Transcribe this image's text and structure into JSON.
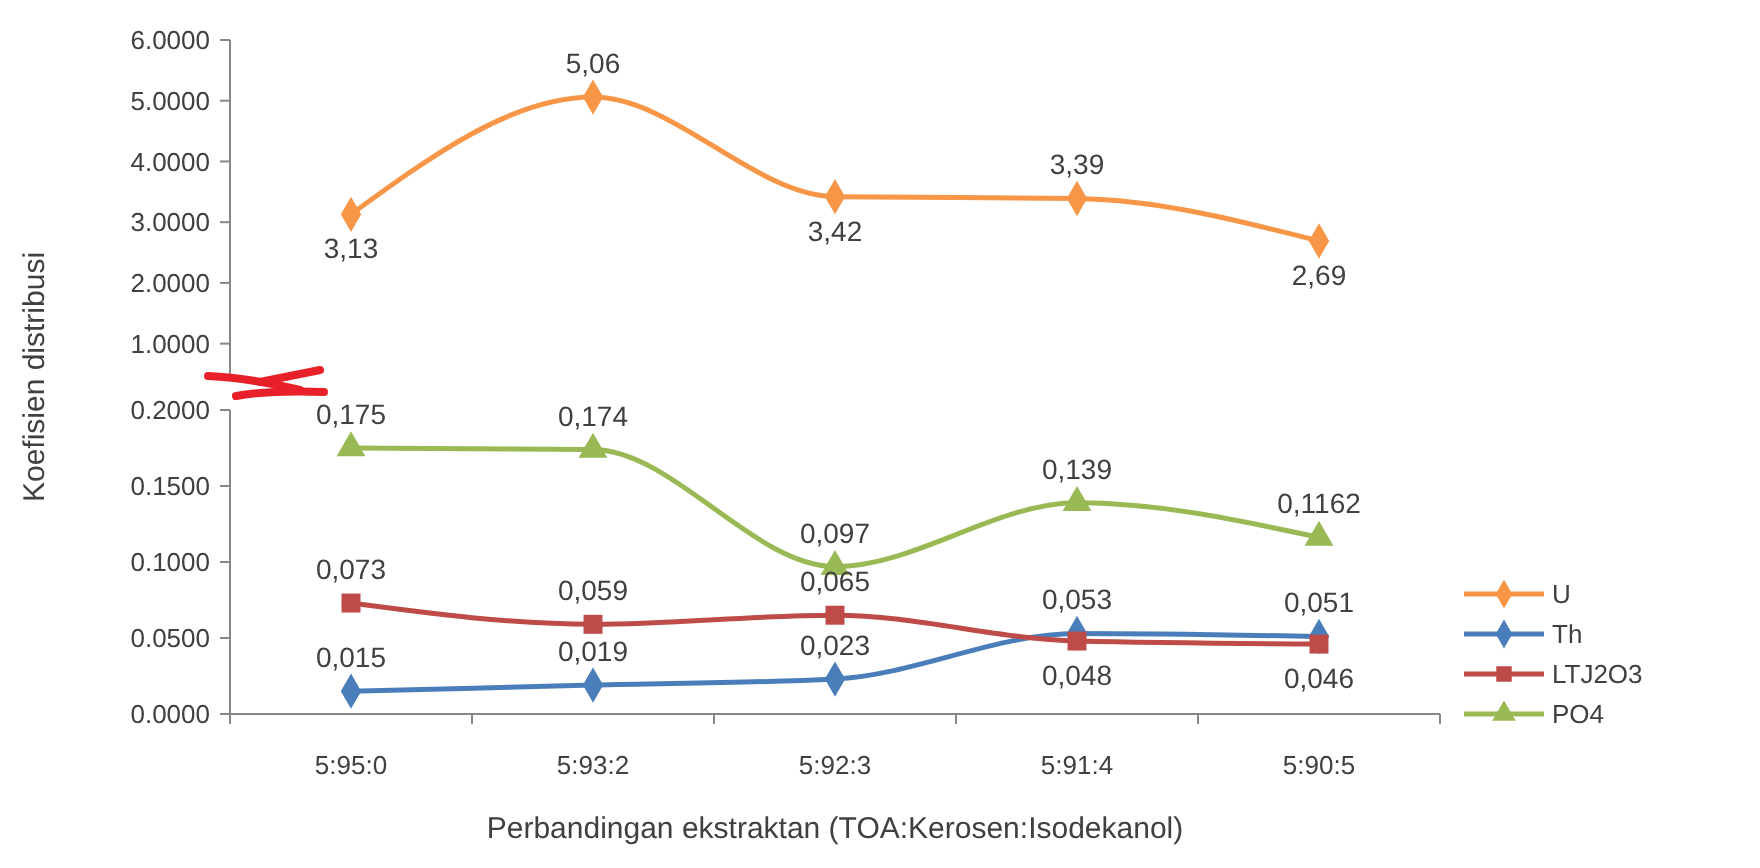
{
  "chart_data": [
    {
      "type": "line",
      "categories": [
        null,
        null,
        null,
        null,
        null
      ],
      "ylim": [
        0.5,
        6
      ],
      "yticks": [
        {
          "value": 1,
          "label": "1.0000"
        },
        {
          "value": 2,
          "label": "2.0000"
        },
        {
          "value": 3,
          "label": "3.0000"
        },
        {
          "value": 4,
          "label": "4.0000"
        },
        {
          "value": 5,
          "label": "5.0000"
        },
        {
          "value": 6,
          "label": "6.0000"
        }
      ],
      "tick_labels": "y",
      "legend": "right",
      "series": [
        {
          "name": "U",
          "color": "#f79646",
          "values": [
            3.13,
            5.06,
            3.42,
            3.39,
            2.69
          ],
          "marker": "diamond",
          "value_labels": [
            "3,13",
            "5,06",
            "3,42",
            "3,39",
            "2,69"
          ]
        }
      ]
    },
    {
      "type": "line",
      "categories": [
        "5:95:0",
        "5:93:2",
        "5:92:3",
        "5:91:4",
        "5:90:5"
      ],
      "xlabel": "Perbandingan ekstraktan (TOA:Kerosen:Isodekanol)",
      "ylabel": "Koefisien distribusi",
      "ylim": [
        0,
        0.2
      ],
      "yticks": [
        {
          "value": 0,
          "label": "0.0000"
        },
        {
          "value": 0.05,
          "label": "0.0500"
        },
        {
          "value": 0.1,
          "label": "0.1000"
        },
        {
          "value": 0.15,
          "label": "0.1500"
        },
        {
          "value": 0.2,
          "label": "0.2000"
        }
      ],
      "legend": "right",
      "series": [
        {
          "name": "Th",
          "color": "#4a7ebb",
          "values": [
            0.015,
            0.019,
            0.023,
            0.053,
            0.051
          ],
          "marker": "diamond",
          "value_labels": [
            "0,015",
            "0,019",
            "0,023",
            "0,053",
            "0,051"
          ]
        },
        {
          "name": "LTJ2O3",
          "color": "#be4b48",
          "values": [
            0.073,
            0.059,
            0.065,
            0.048,
            0.046
          ],
          "marker": "square",
          "value_labels": [
            "0,073",
            "0,059",
            "0,065",
            "0,048",
            "0,046"
          ]
        },
        {
          "name": "PO4",
          "color": "#98b954",
          "values": [
            0.175,
            0.174,
            0.097,
            0.139,
            0.1162
          ],
          "marker": "triangle",
          "value_labels": [
            "0,175",
            "0,174",
            "0,097",
            "0,139",
            "0,1162"
          ]
        }
      ]
    }
  ]
}
